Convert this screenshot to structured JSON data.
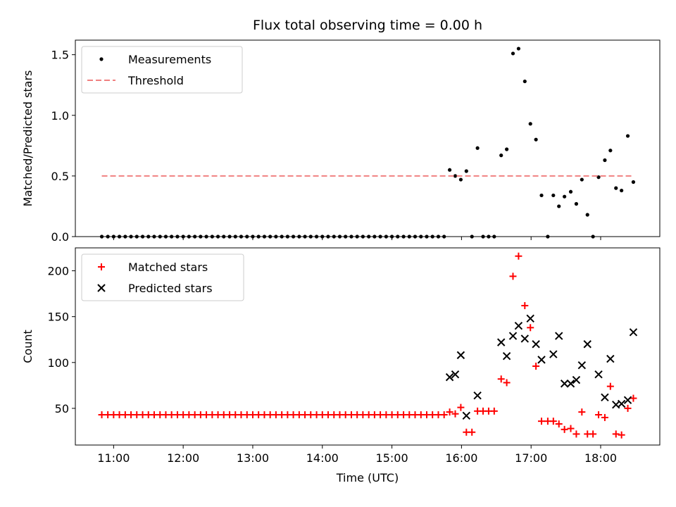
{
  "chart_data": [
    {
      "type": "scatter",
      "title": "Flux total observing time = 0.00 h",
      "xlabel": "",
      "ylabel": "Matched/Predicted stars",
      "ylim": [
        0,
        1.62
      ],
      "yticks": [
        0.0,
        0.5,
        1.0,
        1.5
      ],
      "ytick_labels": [
        "0.0",
        "0.5",
        "1.0",
        "1.5"
      ],
      "legend_position": "top-left",
      "series": [
        {
          "name": "Measurements",
          "marker": "dot",
          "color": "#000000",
          "x": [
            10.83,
            10.917,
            11.0,
            11.083,
            11.167,
            11.25,
            11.333,
            11.417,
            11.5,
            11.583,
            11.667,
            11.75,
            11.833,
            11.917,
            12.0,
            12.083,
            12.167,
            12.25,
            12.333,
            12.417,
            12.5,
            12.583,
            12.667,
            12.75,
            12.833,
            12.917,
            13.0,
            13.083,
            13.167,
            13.25,
            13.333,
            13.417,
            13.5,
            13.583,
            13.667,
            13.75,
            13.833,
            13.917,
            14.0,
            14.083,
            14.167,
            14.25,
            14.333,
            14.417,
            14.5,
            14.583,
            14.667,
            14.75,
            14.833,
            14.917,
            15.0,
            15.083,
            15.167,
            15.25,
            15.333,
            15.417,
            15.5,
            15.583,
            15.667,
            15.75,
            15.83,
            15.91,
            15.99,
            16.07,
            16.15,
            16.23,
            16.31,
            16.39,
            16.47,
            16.57,
            16.65,
            16.74,
            16.82,
            16.91,
            16.99,
            17.07,
            17.15,
            17.24,
            17.32,
            17.4,
            17.48,
            17.57,
            17.65,
            17.73,
            17.81,
            17.89,
            17.97,
            18.06,
            18.14,
            18.22,
            18.3,
            18.39,
            18.47
          ],
          "y": [
            0,
            0,
            0,
            0,
            0,
            0,
            0,
            0,
            0,
            0,
            0,
            0,
            0,
            0,
            0,
            0,
            0,
            0,
            0,
            0,
            0,
            0,
            0,
            0,
            0,
            0,
            0,
            0,
            0,
            0,
            0,
            0,
            0,
            0,
            0,
            0,
            0,
            0,
            0,
            0,
            0,
            0,
            0,
            0,
            0,
            0,
            0,
            0,
            0,
            0,
            0,
            0,
            0,
            0,
            0,
            0,
            0,
            0,
            0,
            0,
            0.55,
            0.5,
            0.47,
            0.54,
            0,
            0.73,
            0,
            0,
            0,
            0.67,
            0.72,
            1.51,
            1.55,
            1.28,
            0.93,
            0.8,
            0.34,
            0,
            0.34,
            0.25,
            0.33,
            0.37,
            0.27,
            0.47,
            0.18,
            0,
            0.49,
            0.63,
            0.71,
            0.4,
            0.38,
            0.83,
            0.45
          ]
        },
        {
          "name": "Threshold",
          "marker": "dashed-line",
          "color": "#f08080",
          "x": [
            10.83,
            18.47
          ],
          "y": [
            0.5,
            0.5
          ]
        }
      ]
    },
    {
      "type": "scatter",
      "title": "",
      "xlabel": "Time (UTC)",
      "ylabel": "Count",
      "ylim": [
        10,
        225
      ],
      "xlim": [
        10.45,
        18.85
      ],
      "yticks": [
        50,
        100,
        150,
        200
      ],
      "ytick_labels": [
        "50",
        "100",
        "150",
        "200"
      ],
      "xticks": [
        11,
        12,
        13,
        14,
        15,
        16,
        17,
        18
      ],
      "xtick_labels": [
        "11:00",
        "12:00",
        "13:00",
        "14:00",
        "15:00",
        "16:00",
        "17:00",
        "18:00"
      ],
      "legend_position": "top-left",
      "series": [
        {
          "name": "Matched stars",
          "marker": "plus",
          "color": "#ff0000",
          "x": [
            10.83,
            10.917,
            11.0,
            11.083,
            11.167,
            11.25,
            11.333,
            11.417,
            11.5,
            11.583,
            11.667,
            11.75,
            11.833,
            11.917,
            12.0,
            12.083,
            12.167,
            12.25,
            12.333,
            12.417,
            12.5,
            12.583,
            12.667,
            12.75,
            12.833,
            12.917,
            13.0,
            13.083,
            13.167,
            13.25,
            13.333,
            13.417,
            13.5,
            13.583,
            13.667,
            13.75,
            13.833,
            13.917,
            14.0,
            14.083,
            14.167,
            14.25,
            14.333,
            14.417,
            14.5,
            14.583,
            14.667,
            14.75,
            14.833,
            14.917,
            15.0,
            15.083,
            15.167,
            15.25,
            15.333,
            15.417,
            15.5,
            15.583,
            15.667,
            15.75,
            15.83,
            15.91,
            15.99,
            16.07,
            16.15,
            16.23,
            16.31,
            16.39,
            16.47,
            16.57,
            16.65,
            16.74,
            16.82,
            16.91,
            16.99,
            17.07,
            17.15,
            17.24,
            17.32,
            17.4,
            17.48,
            17.57,
            17.65,
            17.73,
            17.81,
            17.89,
            17.97,
            18.06,
            18.14,
            18.22,
            18.3,
            18.39,
            18.47
          ],
          "y": [
            43,
            43,
            43,
            43,
            43,
            43,
            43,
            43,
            43,
            43,
            43,
            43,
            43,
            43,
            43,
            43,
            43,
            43,
            43,
            43,
            43,
            43,
            43,
            43,
            43,
            43,
            43,
            43,
            43,
            43,
            43,
            43,
            43,
            43,
            43,
            43,
            43,
            43,
            43,
            43,
            43,
            43,
            43,
            43,
            43,
            43,
            43,
            43,
            43,
            43,
            43,
            43,
            43,
            43,
            43,
            43,
            43,
            43,
            43,
            43,
            46,
            44,
            51,
            24,
            24,
            47,
            47,
            47,
            47,
            82,
            78,
            194,
            216,
            162,
            138,
            96,
            36,
            36,
            36,
            33,
            27,
            28,
            22,
            46,
            22,
            22,
            43,
            40,
            74,
            22,
            21,
            50,
            61
          ]
        },
        {
          "name": "Predicted stars",
          "marker": "x",
          "color": "#000000",
          "x": [
            15.83,
            15.91,
            15.99,
            16.07,
            16.23,
            16.57,
            16.65,
            16.74,
            16.82,
            16.91,
            16.99,
            17.07,
            17.15,
            17.32,
            17.4,
            17.48,
            17.57,
            17.65,
            17.73,
            17.81,
            17.97,
            18.06,
            18.14,
            18.22,
            18.3,
            18.39,
            18.47
          ],
          "y": [
            84,
            87,
            108,
            42,
            64,
            122,
            107,
            129,
            140,
            126,
            148,
            120,
            103,
            109,
            129,
            77,
            77,
            81,
            97,
            120,
            87,
            62,
            104,
            54,
            55,
            59,
            133
          ]
        }
      ]
    }
  ]
}
